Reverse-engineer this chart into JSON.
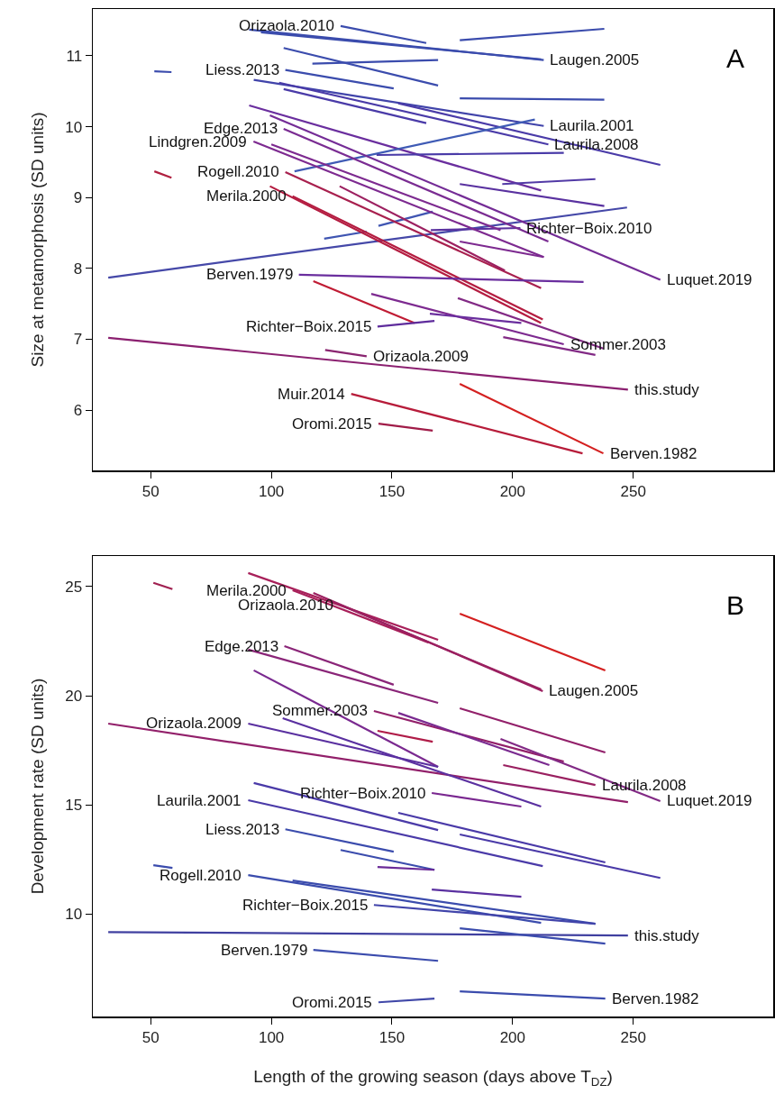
{
  "chart_data": [
    {
      "type": "line",
      "ylabel": "Size at metamorphosis (SD units)",
      "xlim": [
        26,
        308
      ],
      "xticks": [
        50,
        100,
        150,
        200,
        250
      ],
      "ylim": [
        5.15,
        11.66
      ],
      "yticks": [
        6,
        7,
        8,
        9,
        10,
        11
      ],
      "grid": false,
      "marker": "none",
      "series": [
        {
          "color": "#3b4cad",
          "x": [
            90.8,
            212.9
          ],
          "values": [
            11.37,
            10.94
          ]
        },
        {
          "color": "#3b4cad",
          "x": [
            95.7,
            211.8
          ],
          "values": [
            11.33,
            10.95
          ]
        },
        {
          "color": "#3b4cad",
          "x": [
            128.7,
            164.2
          ],
          "values": [
            11.42,
            11.18
          ]
        },
        {
          "color": "#3b4cad",
          "x": [
            178.1,
            238
          ],
          "values": [
            11.22,
            11.38
          ]
        },
        {
          "color": "#3b4cad",
          "x": [
            51.5,
            58.6
          ],
          "values": [
            10.78,
            10.77
          ]
        },
        {
          "color": "#3b4cad",
          "x": [
            117,
            169.1
          ],
          "values": [
            10.89,
            10.94
          ]
        },
        {
          "color": "#3b4cad",
          "x": [
            105.1,
            169.1
          ],
          "values": [
            11.11,
            10.58
          ]
        },
        {
          "color": "#3b4cad",
          "x": [
            105.8,
            150.7
          ],
          "values": [
            10.8,
            10.54
          ]
        },
        {
          "color": "#3b4cad",
          "x": [
            178.1,
            238
          ],
          "values": [
            10.4,
            10.38
          ]
        },
        {
          "color": "#4144aa",
          "x": [
            92.7,
            212.9
          ],
          "values": [
            10.66,
            10.01
          ]
        },
        {
          "color": "#4a3ba8",
          "x": [
            103.2,
            214.8
          ],
          "values": [
            10.62,
            9.75
          ]
        },
        {
          "color": "#4a3ba8",
          "x": [
            105.1,
            164.2
          ],
          "values": [
            10.53,
            10.05
          ]
        },
        {
          "color": "#4a3ba8",
          "x": [
            152.6,
            261.2
          ],
          "values": [
            10.33,
            9.46
          ]
        },
        {
          "color": "#6a2e9e",
          "x": [
            90.8,
            211.8
          ],
          "values": [
            10.3,
            9.1
          ]
        },
        {
          "color": "#3f5bb5",
          "x": [
            109.6,
            209.2
          ],
          "values": [
            9.37,
            10.1
          ]
        },
        {
          "color": "#4a3ba8",
          "x": [
            143.6,
            221.2
          ],
          "values": [
            9.6,
            9.63
          ]
        },
        {
          "color": "#523aa6",
          "x": [
            195.7,
            234.3
          ],
          "values": [
            9.19,
            9.26
          ]
        },
        {
          "color": "#5a32a0",
          "x": [
            178.1,
            238
          ],
          "values": [
            9.19,
            8.88
          ]
        },
        {
          "color": "#4548a8",
          "x": [
            32.4,
            247.4
          ],
          "values": [
            7.87,
            8.86
          ]
        },
        {
          "color": "#3f55b2",
          "x": [
            121.9,
            139.5
          ],
          "values": [
            8.42,
            8.52
          ]
        },
        {
          "color": "#3f55b2",
          "x": [
            144.4,
            166.9
          ],
          "values": [
            8.6,
            8.8
          ]
        },
        {
          "color": "#5a32a0",
          "x": [
            166.1,
            203.2
          ],
          "values": [
            8.54,
            8.57
          ]
        },
        {
          "color": "#7a2c92",
          "x": [
            105.1,
            214.8
          ],
          "values": [
            9.97,
            8.38
          ]
        },
        {
          "color": "#7d2a90",
          "x": [
            92.6,
            212.9
          ],
          "values": [
            9.79,
            8.16
          ]
        },
        {
          "color": "#7d2a90",
          "x": [
            100,
            195
          ],
          "values": [
            9.75,
            8.54
          ]
        },
        {
          "color": "#742c96",
          "x": [
            99.4,
            261.2
          ],
          "values": [
            10.16,
            7.84
          ]
        },
        {
          "color": "#7d2a90",
          "x": [
            178.1,
            212.9
          ],
          "values": [
            8.38,
            8.16
          ]
        },
        {
          "color": "#b02040",
          "x": [
            51.5,
            58.6
          ],
          "values": [
            9.37,
            9.28
          ]
        },
        {
          "color": "#a8204e",
          "x": [
            105.8,
            211.8
          ],
          "values": [
            9.36,
            7.72
          ]
        },
        {
          "color": "#9c2060",
          "x": [
            128.3,
            196.8
          ],
          "values": [
            9.16,
            7.97
          ]
        },
        {
          "color": "#b41c40",
          "x": [
            108.8,
            212.5
          ],
          "values": [
            9.02,
            7.28
          ]
        },
        {
          "color": "#b41c40",
          "x": [
            99.4,
            211.8
          ],
          "values": [
            9.16,
            7.23
          ]
        },
        {
          "color": "#6a2e9e",
          "x": [
            111.4,
            229.4
          ],
          "values": [
            7.91,
            7.81
          ]
        },
        {
          "color": "#c01c34",
          "x": [
            117.4,
            159.4
          ],
          "values": [
            7.82,
            7.23
          ]
        },
        {
          "color": "#7d2a90",
          "x": [
            141.4,
            221.2
          ],
          "values": [
            7.64,
            6.93
          ]
        },
        {
          "color": "#822a85",
          "x": [
            177.3,
            237.6
          ],
          "values": [
            7.58,
            6.87
          ]
        },
        {
          "color": "#5e2c9c",
          "x": [
            144,
            167.6
          ],
          "values": [
            7.18,
            7.26
          ]
        },
        {
          "color": "#6a2e9e",
          "x": [
            165.7,
            203.6
          ],
          "values": [
            7.36,
            7.23
          ]
        },
        {
          "color": "#822a85",
          "x": [
            196.1,
            234.3
          ],
          "values": [
            7.03,
            6.78
          ]
        },
        {
          "color": "#8a2570",
          "x": [
            122.3,
            139.5
          ],
          "values": [
            6.85,
            6.76
          ]
        },
        {
          "color": "#8b2070",
          "x": [
            32.4,
            247.8
          ],
          "values": [
            7.02,
            6.29
          ]
        },
        {
          "color": "#b71c3a",
          "x": [
            133.1,
            229
          ],
          "values": [
            6.23,
            5.39
          ]
        },
        {
          "color": "#a01c48",
          "x": [
            144.4,
            166.9
          ],
          "values": [
            5.81,
            5.71
          ]
        },
        {
          "color": "#d42020",
          "x": [
            178.1,
            237.6
          ],
          "values": [
            6.37,
            5.39
          ]
        }
      ],
      "annotations": [
        "A",
        {
          "text": "Orizaola.2010",
          "x": 128.7,
          "y": 11.42
        },
        {
          "text": "Liess.2013",
          "x": 105.8,
          "y": 10.8
        },
        {
          "text": "Edge.2013",
          "x": 105.1,
          "y": 9.97
        },
        {
          "text": "Lindgren.2009",
          "x": 92.6,
          "y": 9.79
        },
        {
          "text": "Rogell.2010",
          "x": 105.8,
          "y": 9.36
        },
        {
          "text": "Merila.2000",
          "x": 108.8,
          "y": 9.02
        },
        {
          "text": "Laugen.2005",
          "x": 212.9,
          "y": 10.94
        },
        {
          "text": "Laurila.2001",
          "x": 212.9,
          "y": 10.01
        },
        {
          "text": "Laurila.2008",
          "x": 214.8,
          "y": 9.75
        },
        {
          "text": "Richter−Boix.2010",
          "x": 203.2,
          "y": 8.57
        },
        {
          "text": "Luquet.2019",
          "x": 261.2,
          "y": 7.84
        },
        {
          "text": "Berven.1979",
          "x": 111.4,
          "y": 7.91
        },
        {
          "text": "Richter−Boix.2015",
          "x": 144,
          "y": 7.18
        },
        {
          "text": "Sommer.2003",
          "x": 221.2,
          "y": 6.93
        },
        {
          "text": "Orizaola.2009",
          "x": 139.5,
          "y": 6.76
        },
        {
          "text": "this.study",
          "x": 247.8,
          "y": 6.29
        },
        {
          "text": "Muir.2014",
          "x": 133.1,
          "y": 6.23
        },
        {
          "text": "Oromi.2015",
          "x": 144.4,
          "y": 5.81
        },
        {
          "text": "Berven.1982",
          "x": 237.6,
          "y": 5.39
        }
      ]
    },
    {
      "type": "line",
      "xlabel": "Length of the growing season (days above T$_{DZ}$)",
      "ylabel": "Development rate (SD units)",
      "xlim": [
        26,
        308
      ],
      "xticks": [
        50,
        100,
        150,
        200,
        250
      ],
      "ylim": [
        5.3,
        26.4
      ],
      "yticks": [
        10,
        15,
        20,
        25
      ],
      "grid": false,
      "marker": "none",
      "series": [
        {
          "color": "#a02050",
          "x": [
            51.1,
            59
          ],
          "values": [
            25.17,
            24.88
          ]
        },
        {
          "color": "#a8205a",
          "x": [
            90.4,
            169.1
          ],
          "values": [
            25.62,
            22.56
          ]
        },
        {
          "color": "#a8205a",
          "x": [
            108.8,
            165
          ],
          "values": [
            24.83,
            22.44
          ]
        },
        {
          "color": "#9b2060",
          "x": [
            117.4,
            212.5
          ],
          "values": [
            24.71,
            20.21
          ]
        },
        {
          "color": "#9b2060",
          "x": [
            128.3,
            211.8
          ],
          "values": [
            24.17,
            20.29
          ]
        },
        {
          "color": "#d42020",
          "x": [
            178.1,
            238.4
          ],
          "values": [
            23.76,
            21.16
          ]
        },
        {
          "color": "#8a2578",
          "x": [
            105.4,
            150.7
          ],
          "values": [
            22.27,
            20.5
          ]
        },
        {
          "color": "#8a2578",
          "x": [
            90.4,
            169.1
          ],
          "values": [
            22.11,
            19.67
          ]
        },
        {
          "color": "#7a2a90",
          "x": [
            92.7,
            169.1
          ],
          "values": [
            21.16,
            16.74
          ]
        },
        {
          "color": "#92206a",
          "x": [
            178.1,
            238.4
          ],
          "values": [
            19.42,
            17.4
          ]
        },
        {
          "color": "#92206a",
          "x": [
            142.5,
            221.2
          ],
          "values": [
            19.3,
            16.98
          ]
        },
        {
          "color": "#7a2a90",
          "x": [
            152.6,
            215.2
          ],
          "values": [
            19.21,
            16.82
          ]
        },
        {
          "color": "#b01c48",
          "x": [
            144,
            166.9
          ],
          "values": [
            18.39,
            17.89
          ]
        },
        {
          "color": "#92206a",
          "x": [
            32.4,
            247.8
          ],
          "values": [
            18.72,
            15.12
          ]
        },
        {
          "color": "#5a30a0",
          "x": [
            90.4,
            169.1
          ],
          "values": [
            18.72,
            16.74
          ]
        },
        {
          "color": "#5a30a0",
          "x": [
            104.7,
            211.8
          ],
          "values": [
            18.97,
            14.92
          ]
        },
        {
          "color": "#9a2060",
          "x": [
            196.1,
            234.3
          ],
          "values": [
            16.82,
            15.91
          ]
        },
        {
          "color": "#822a85",
          "x": [
            195,
            261.2
          ],
          "values": [
            18.02,
            15.17
          ]
        },
        {
          "color": "#7a2890",
          "x": [
            166.5,
            203.6
          ],
          "values": [
            15.54,
            14.92
          ]
        },
        {
          "color": "#4a3aa8",
          "x": [
            90.4,
            212.5
          ],
          "values": [
            15.21,
            12.19
          ]
        },
        {
          "color": "#4a3aa8",
          "x": [
            92.7,
            169.1
          ],
          "values": [
            16,
            13.84
          ]
        },
        {
          "color": "#4a3aa8",
          "x": [
            152.6,
            238.4
          ],
          "values": [
            14.63,
            12.36
          ]
        },
        {
          "color": "#4a3aa8",
          "x": [
            178.1,
            261.2
          ],
          "values": [
            13.64,
            11.65
          ]
        },
        {
          "color": "#3b4cad",
          "x": [
            105.8,
            150.7
          ],
          "values": [
            13.88,
            12.85
          ]
        },
        {
          "color": "#3b4cad",
          "x": [
            128.7,
            167.6
          ],
          "values": [
            12.93,
            12.02
          ]
        },
        {
          "color": "#6a2a98",
          "x": [
            144,
            167.6
          ],
          "values": [
            12.15,
            12.02
          ]
        },
        {
          "color": "#3b4cad",
          "x": [
            51.1,
            59
          ],
          "values": [
            12.23,
            12.11
          ]
        },
        {
          "color": "#3b4cad",
          "x": [
            90.4,
            211.8
          ],
          "values": [
            11.78,
            9.59
          ]
        },
        {
          "color": "#3b4cad",
          "x": [
            108.8,
            234.3
          ],
          "values": [
            11.53,
            9.55
          ]
        },
        {
          "color": "#5a30a0",
          "x": [
            166.5,
            203.6
          ],
          "values": [
            11.12,
            10.79
          ]
        },
        {
          "color": "#4144aa",
          "x": [
            142.5,
            234.3
          ],
          "values": [
            10.41,
            9.55
          ]
        },
        {
          "color": "#4040a0",
          "x": [
            32.4,
            247.8
          ],
          "values": [
            9.17,
            9.01
          ]
        },
        {
          "color": "#3b4cad",
          "x": [
            178.1,
            238.4
          ],
          "values": [
            9.34,
            8.64
          ]
        },
        {
          "color": "#3b4cad",
          "x": [
            117.4,
            169.1
          ],
          "values": [
            8.35,
            7.85
          ]
        },
        {
          "color": "#4048a8",
          "x": [
            144.4,
            167.6
          ],
          "values": [
            5.95,
            6.12
          ]
        },
        {
          "color": "#3b4cad",
          "x": [
            178.1,
            238.4
          ],
          "values": [
            6.45,
            6.12
          ]
        }
      ],
      "annotations": [
        "B",
        {
          "text": "Merila.2000",
          "x": 108.8,
          "y": 24.83
        },
        {
          "text": "Orizaola.2010",
          "x": 128.3,
          "y": 24.17
        },
        {
          "text": "Edge.2013",
          "x": 105.4,
          "y": 22.27
        },
        {
          "text": "Laugen.2005",
          "x": 212.5,
          "y": 20.21
        },
        {
          "text": "Sommer.2003",
          "x": 142.5,
          "y": 19.3
        },
        {
          "text": "Orizaola.2009",
          "x": 90.4,
          "y": 18.72
        },
        {
          "text": "Laurila.2008",
          "x": 234.3,
          "y": 15.91
        },
        {
          "text": "Luquet.2019",
          "x": 261.2,
          "y": 15.17
        },
        {
          "text": "Laurila.2001",
          "x": 90.4,
          "y": 15.21
        },
        {
          "text": "Richter−Boix.2010",
          "x": 166.5,
          "y": 15.54
        },
        {
          "text": "Liess.2013",
          "x": 105.8,
          "y": 13.88
        },
        {
          "text": "Rogell.2010",
          "x": 90.4,
          "y": 11.78
        },
        {
          "text": "Richter−Boix.2015",
          "x": 142.5,
          "y": 10.41
        },
        {
          "text": "this.study",
          "x": 247.8,
          "y": 9.01
        },
        {
          "text": "Berven.1979",
          "x": 117.4,
          "y": 8.35
        },
        {
          "text": "Oromi.2015",
          "x": 144.4,
          "y": 5.95
        },
        {
          "text": "Berven.1982",
          "x": 238.4,
          "y": 6.12
        }
      ]
    }
  ]
}
